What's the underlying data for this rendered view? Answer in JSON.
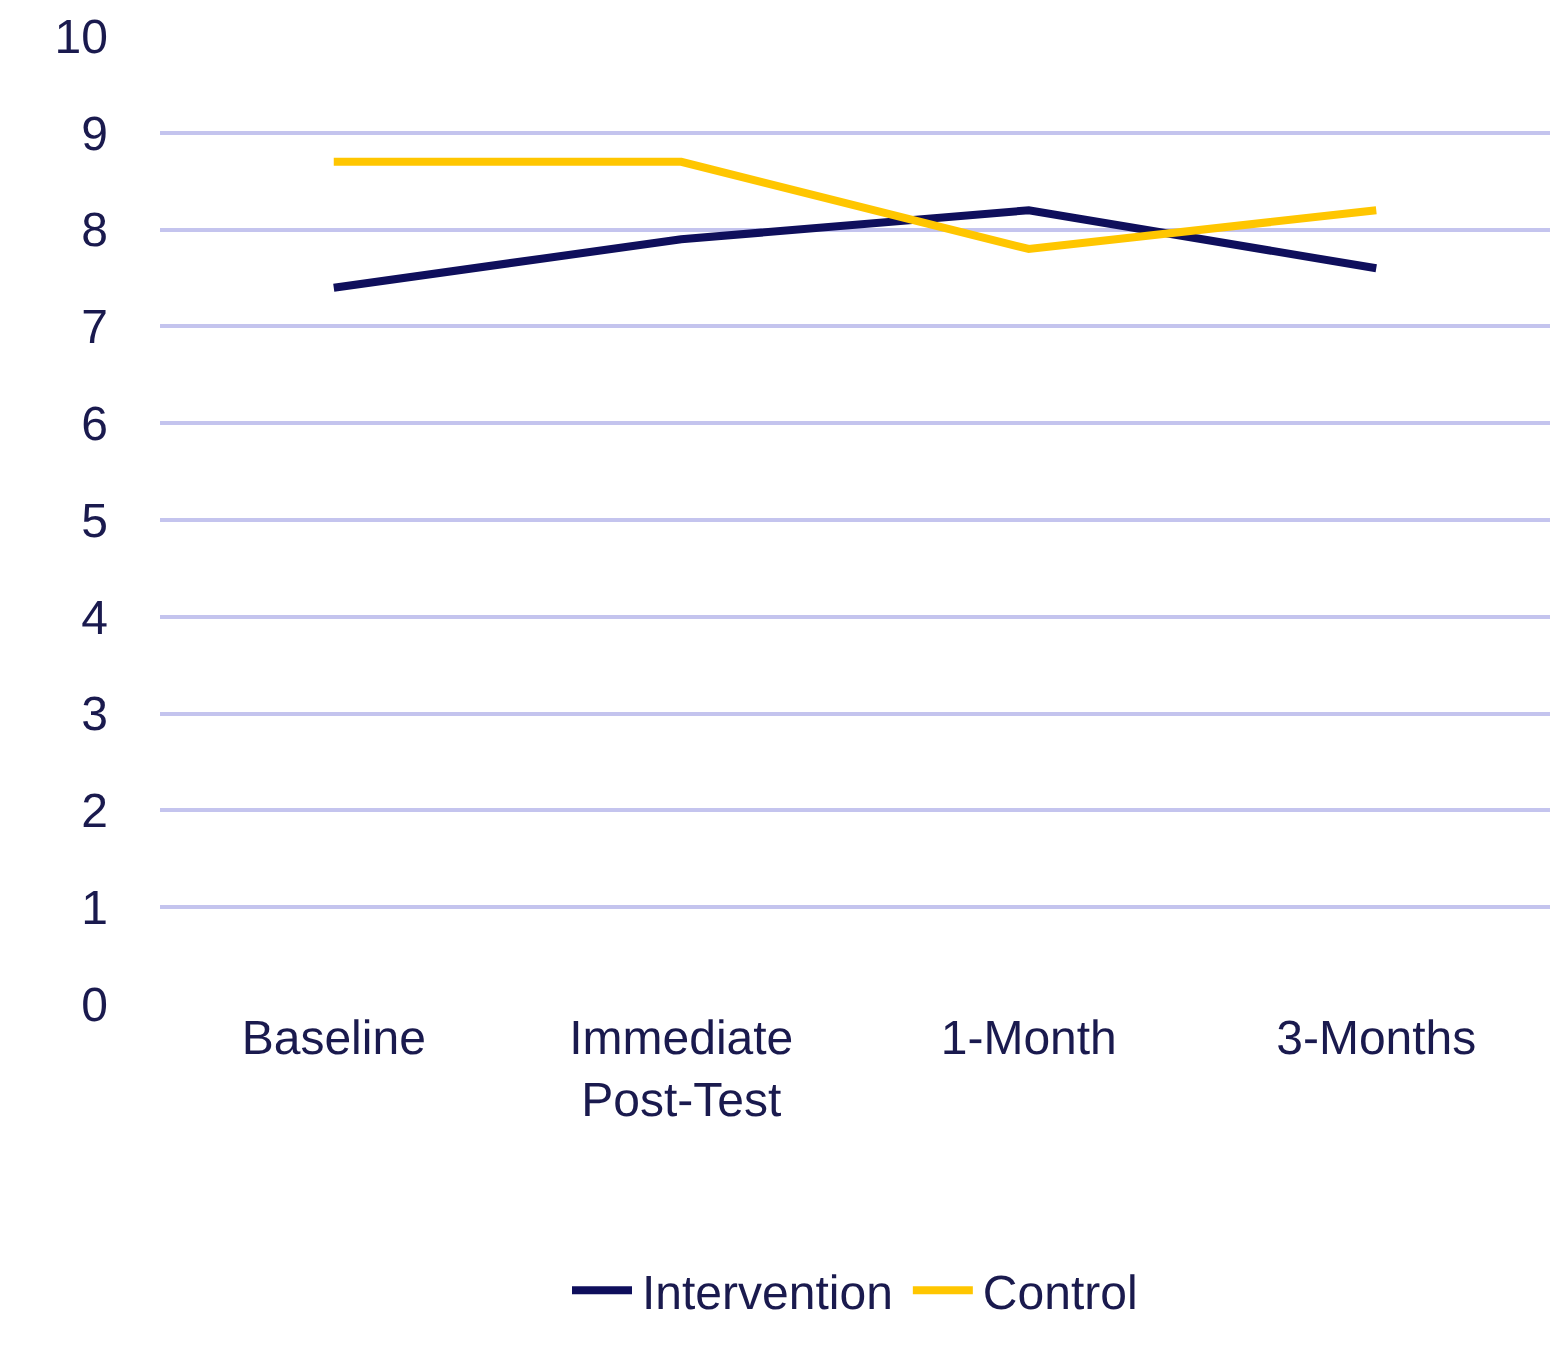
{
  "chart_data": {
    "type": "line",
    "categories": [
      "Baseline",
      "Immediate Post-Test",
      "1-Month",
      "3-Months"
    ],
    "series": [
      {
        "name": "Intervention",
        "color": "#0f0f5c",
        "values": [
          7.4,
          7.9,
          8.2,
          7.6
        ]
      },
      {
        "name": "Control",
        "color": "#ffc600",
        "values": [
          8.7,
          8.7,
          7.8,
          8.2
        ]
      }
    ],
    "ylim": [
      0,
      10
    ],
    "yticks": [
      0,
      1,
      2,
      3,
      4,
      5,
      6,
      7,
      8,
      9,
      10
    ],
    "grid": "y",
    "legend": "bottom",
    "marker": "none",
    "line_style": "solid"
  }
}
